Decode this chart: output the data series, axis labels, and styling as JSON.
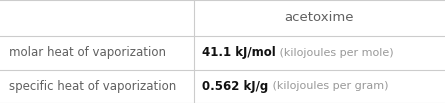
{
  "title": "acetoxime",
  "rows": [
    {
      "label": "molar heat of vaporization",
      "value_bold": "41.1 kJ/mol",
      "value_light": " (kilojoules per mole)"
    },
    {
      "label": "specific heat of vaporization",
      "value_bold": "0.562 kJ/g",
      "value_light": " (kilojoules per gram)"
    }
  ],
  "col_split": 0.435,
  "bg_color": "#ffffff",
  "line_color": "#cccccc",
  "label_color": "#606060",
  "title_color": "#606060",
  "value_bold_color": "#111111",
  "value_light_color": "#999999",
  "font_size_title": 9.5,
  "font_size_label": 8.5,
  "font_size_value_bold": 8.5,
  "font_size_value_light": 8.0
}
